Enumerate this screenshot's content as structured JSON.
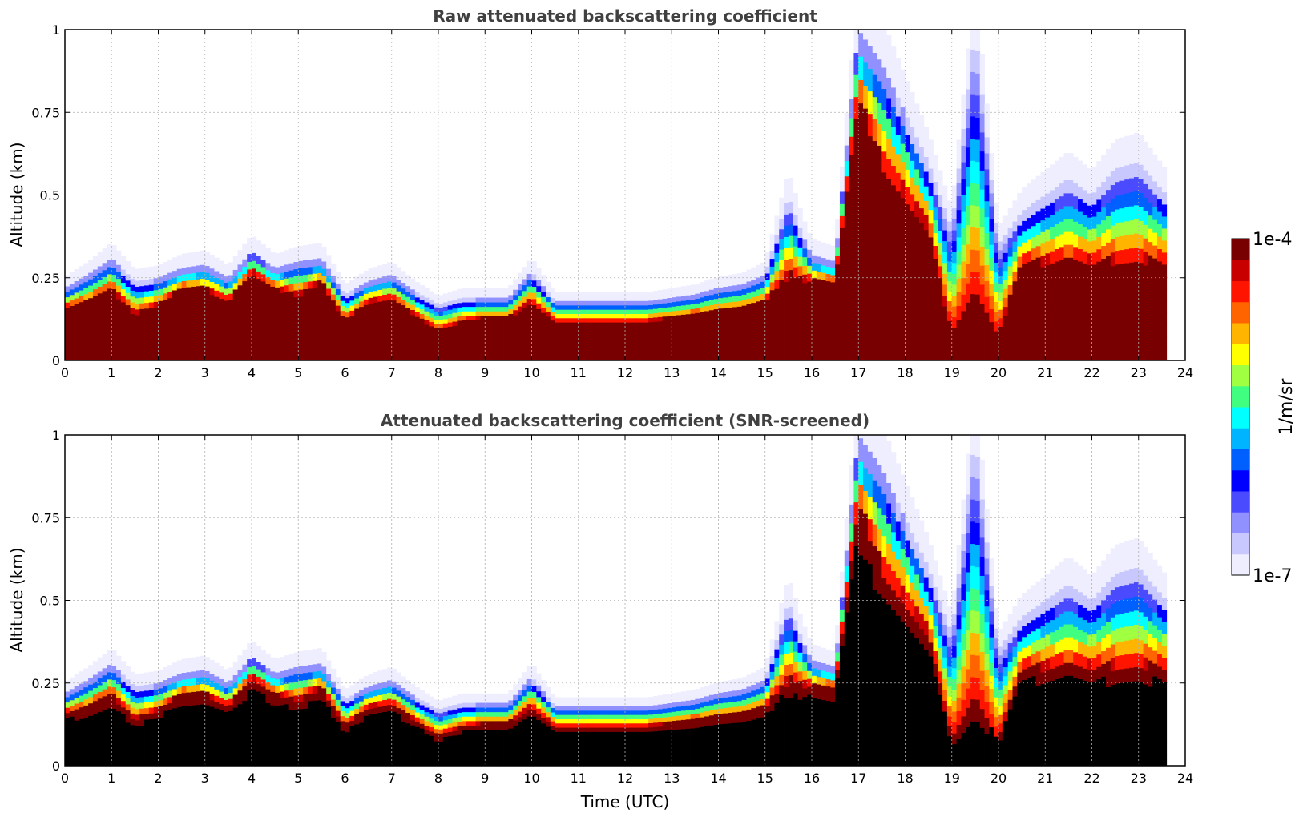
{
  "chart_data": [
    {
      "type": "heatmap",
      "title": "Raw attenuated backscattering coefficient",
      "xlabel": "",
      "ylabel": "Altitude (km)",
      "xlim": [
        0,
        24
      ],
      "ylim": [
        0,
        1
      ],
      "xticks": [
        "0",
        "1",
        "2",
        "3",
        "4",
        "5",
        "6",
        "7",
        "8",
        "9",
        "10",
        "11",
        "12",
        "13",
        "14",
        "15",
        "16",
        "17",
        "18",
        "19",
        "20",
        "21",
        "22",
        "23",
        "24"
      ],
      "yticks": [
        "0",
        "0.25",
        "0.5",
        "0.75",
        "1"
      ],
      "grid": true,
      "data_end_hour": 23.6,
      "profile": {
        "x": [
          0,
          0.5,
          1,
          1.5,
          2,
          2.5,
          3,
          3.5,
          4,
          4.5,
          5,
          5.5,
          6,
          6.5,
          7,
          7.5,
          8,
          8.5,
          9,
          9.5,
          10,
          10.5,
          11,
          11.5,
          12,
          12.5,
          13,
          13.5,
          14,
          14.5,
          15,
          15.5,
          15.8,
          16,
          16.5,
          17,
          17.5,
          18,
          18.5,
          19,
          19.5,
          20,
          20.5,
          21,
          21.5,
          22,
          22.5,
          23,
          23.6
        ],
        "cloud_top_km": [
          0.22,
          0.26,
          0.31,
          0.24,
          0.25,
          0.28,
          0.29,
          0.25,
          0.33,
          0.28,
          0.3,
          0.31,
          0.2,
          0.24,
          0.26,
          0.21,
          0.17,
          0.19,
          0.19,
          0.19,
          0.27,
          0.18,
          0.18,
          0.18,
          0.18,
          0.18,
          0.19,
          0.2,
          0.22,
          0.23,
          0.26,
          0.5,
          0.38,
          0.32,
          0.3,
          1.0,
          0.9,
          0.75,
          0.6,
          0.4,
          1.0,
          0.35,
          0.45,
          0.5,
          0.55,
          0.5,
          0.58,
          0.6,
          0.5
        ],
        "dense_top_km": [
          0.16,
          0.18,
          0.22,
          0.14,
          0.17,
          0.22,
          0.22,
          0.18,
          0.27,
          0.22,
          0.2,
          0.24,
          0.12,
          0.18,
          0.19,
          0.14,
          0.09,
          0.12,
          0.13,
          0.13,
          0.18,
          0.12,
          0.12,
          0.12,
          0.12,
          0.12,
          0.13,
          0.14,
          0.15,
          0.16,
          0.18,
          0.26,
          0.25,
          0.24,
          0.24,
          0.8,
          0.6,
          0.5,
          0.4,
          0.08,
          0.2,
          0.08,
          0.3,
          0.3,
          0.3,
          0.3,
          0.3,
          0.3,
          0.3
        ]
      }
    },
    {
      "type": "heatmap",
      "title": "Attenuated backscattering coefficient (SNR-screened)",
      "xlabel": "Time (UTC)",
      "ylabel": "Altitude (km)",
      "xlim": [
        0,
        24
      ],
      "ylim": [
        0,
        1
      ],
      "xticks": [
        "0",
        "1",
        "2",
        "3",
        "4",
        "5",
        "6",
        "7",
        "8",
        "9",
        "10",
        "11",
        "12",
        "13",
        "14",
        "15",
        "16",
        "17",
        "18",
        "19",
        "20",
        "21",
        "22",
        "23",
        "24"
      ],
      "yticks": [
        "0",
        "0.25",
        "0.5",
        "0.75",
        "1"
      ],
      "grid": true,
      "screened_fill": "#000000"
    }
  ],
  "colorbar": {
    "label": "1/m/sr",
    "max_label": "1e-4",
    "min_label": "1e-7",
    "colors": [
      "#eeeeff",
      "#c8c8ff",
      "#9090ff",
      "#4a4aff",
      "#0000ff",
      "#0060ff",
      "#00b4ff",
      "#00ffff",
      "#40ff80",
      "#a0ff40",
      "#ffff00",
      "#ffb400",
      "#ff6400",
      "#ff1400",
      "#c80000",
      "#780000"
    ]
  }
}
